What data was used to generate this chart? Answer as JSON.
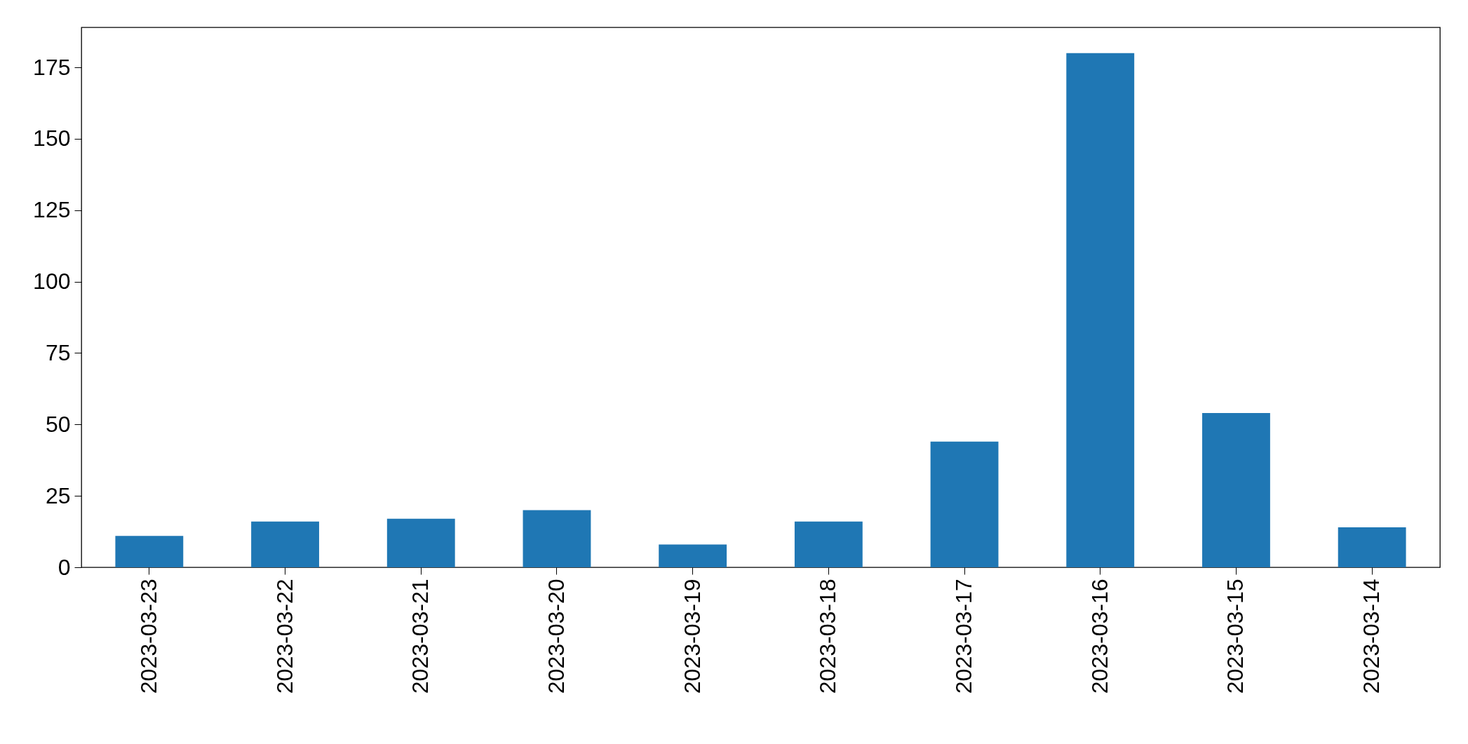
{
  "chart_data": {
    "type": "bar",
    "categories": [
      "2023-03-23",
      "2023-03-22",
      "2023-03-21",
      "2023-03-20",
      "2023-03-19",
      "2023-03-18",
      "2023-03-17",
      "2023-03-16",
      "2023-03-15",
      "2023-03-14"
    ],
    "values": [
      11,
      16,
      17,
      20,
      8,
      16,
      44,
      180,
      54,
      14
    ],
    "color": "#1f77b4",
    "ylim": [
      0,
      189
    ],
    "yticks": [
      0,
      25,
      50,
      75,
      100,
      125,
      150,
      175
    ],
    "grid": false
  }
}
